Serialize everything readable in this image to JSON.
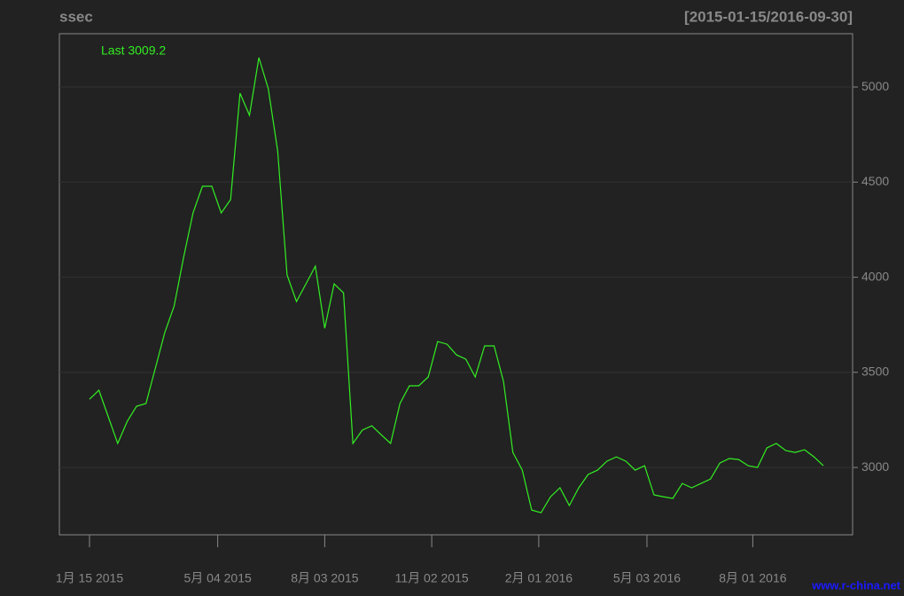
{
  "chart_data": {
    "type": "line",
    "title": "ssec",
    "subtitle": "[2015-01-15/2016-09-30]",
    "annotation": "Last 3009.2",
    "watermark": "www.r-china.net",
    "x": [
      "2015-01-15",
      "2015-01-23",
      "2015-01-31",
      "2015-02-08",
      "2015-02-16",
      "2015-02-24",
      "2015-03-04",
      "2015-03-12",
      "2015-03-20",
      "2015-03-28",
      "2015-04-05",
      "2015-04-13",
      "2015-04-21",
      "2015-04-29",
      "2015-05-07",
      "2015-05-15",
      "2015-05-23",
      "2015-05-31",
      "2015-06-08",
      "2015-06-16",
      "2015-06-24",
      "2015-07-02",
      "2015-07-10",
      "2015-07-18",
      "2015-07-26",
      "2015-08-03",
      "2015-08-11",
      "2015-08-19",
      "2015-08-27",
      "2015-09-04",
      "2015-09-12",
      "2015-09-20",
      "2015-09-28",
      "2015-10-06",
      "2015-10-14",
      "2015-10-22",
      "2015-10-30",
      "2015-11-07",
      "2015-11-15",
      "2015-11-23",
      "2015-12-01",
      "2015-12-09",
      "2015-12-17",
      "2015-12-25",
      "2016-01-02",
      "2016-01-10",
      "2016-01-18",
      "2016-01-26",
      "2016-02-03",
      "2016-02-11",
      "2016-02-19",
      "2016-02-27",
      "2016-03-06",
      "2016-03-14",
      "2016-03-22",
      "2016-03-30",
      "2016-04-07",
      "2016-04-15",
      "2016-04-23",
      "2016-05-01",
      "2016-05-09",
      "2016-05-17",
      "2016-05-25",
      "2016-06-02",
      "2016-06-10",
      "2016-06-18",
      "2016-06-26",
      "2016-07-04",
      "2016-07-12",
      "2016-07-20",
      "2016-07-28",
      "2016-08-05",
      "2016-08-13",
      "2016-08-21",
      "2016-08-29",
      "2016-09-06",
      "2016-09-14",
      "2016-09-22",
      "2016-09-30"
    ],
    "series": [
      {
        "name": "ssec",
        "color": "#33ee22",
        "values": [
          3359,
          3406,
          3266,
          3126,
          3242,
          3322,
          3336,
          3522,
          3709,
          3849,
          4105,
          4338,
          4478,
          4478,
          4338,
          4408,
          4967,
          4851,
          5154,
          4991,
          4664,
          4012,
          3872,
          3965,
          4058,
          3732,
          3965,
          3918,
          3126,
          3196,
          3219,
          3172,
          3126,
          3336,
          3429,
          3429,
          3476,
          3662,
          3648,
          3592,
          3569,
          3476,
          3639,
          3639,
          3452,
          3079,
          2986,
          2776,
          2762,
          2846,
          2893,
          2800,
          2893,
          2963,
          2986,
          3033,
          3056,
          3033,
          2986,
          3009,
          2856,
          2846,
          2837,
          2916,
          2893,
          2916,
          2939,
          3023,
          3047,
          3042,
          3009,
          3000,
          3103,
          3126,
          3089,
          3079,
          3093,
          3056,
          3009.2
        ]
      }
    ],
    "xlim": [
      "2015-01-15",
      "2016-09-30"
    ],
    "xticks": [
      {
        "value": "2015-01-15",
        "label": "1月 15 2015"
      },
      {
        "value": "2015-05-04",
        "label": "5月 04 2015"
      },
      {
        "value": "2015-08-03",
        "label": "8月 03 2015"
      },
      {
        "value": "2015-11-02",
        "label": "11月 02 2015"
      },
      {
        "value": "2016-02-01",
        "label": "2月 01 2016"
      },
      {
        "value": "2016-05-03",
        "label": "5月 03 2016"
      },
      {
        "value": "2016-08-01",
        "label": "8月 01 2016"
      }
    ],
    "ylim": [
      2646,
      5280
    ],
    "yticks": [
      3000,
      3500,
      4000,
      4500,
      5000
    ],
    "grid": true
  }
}
